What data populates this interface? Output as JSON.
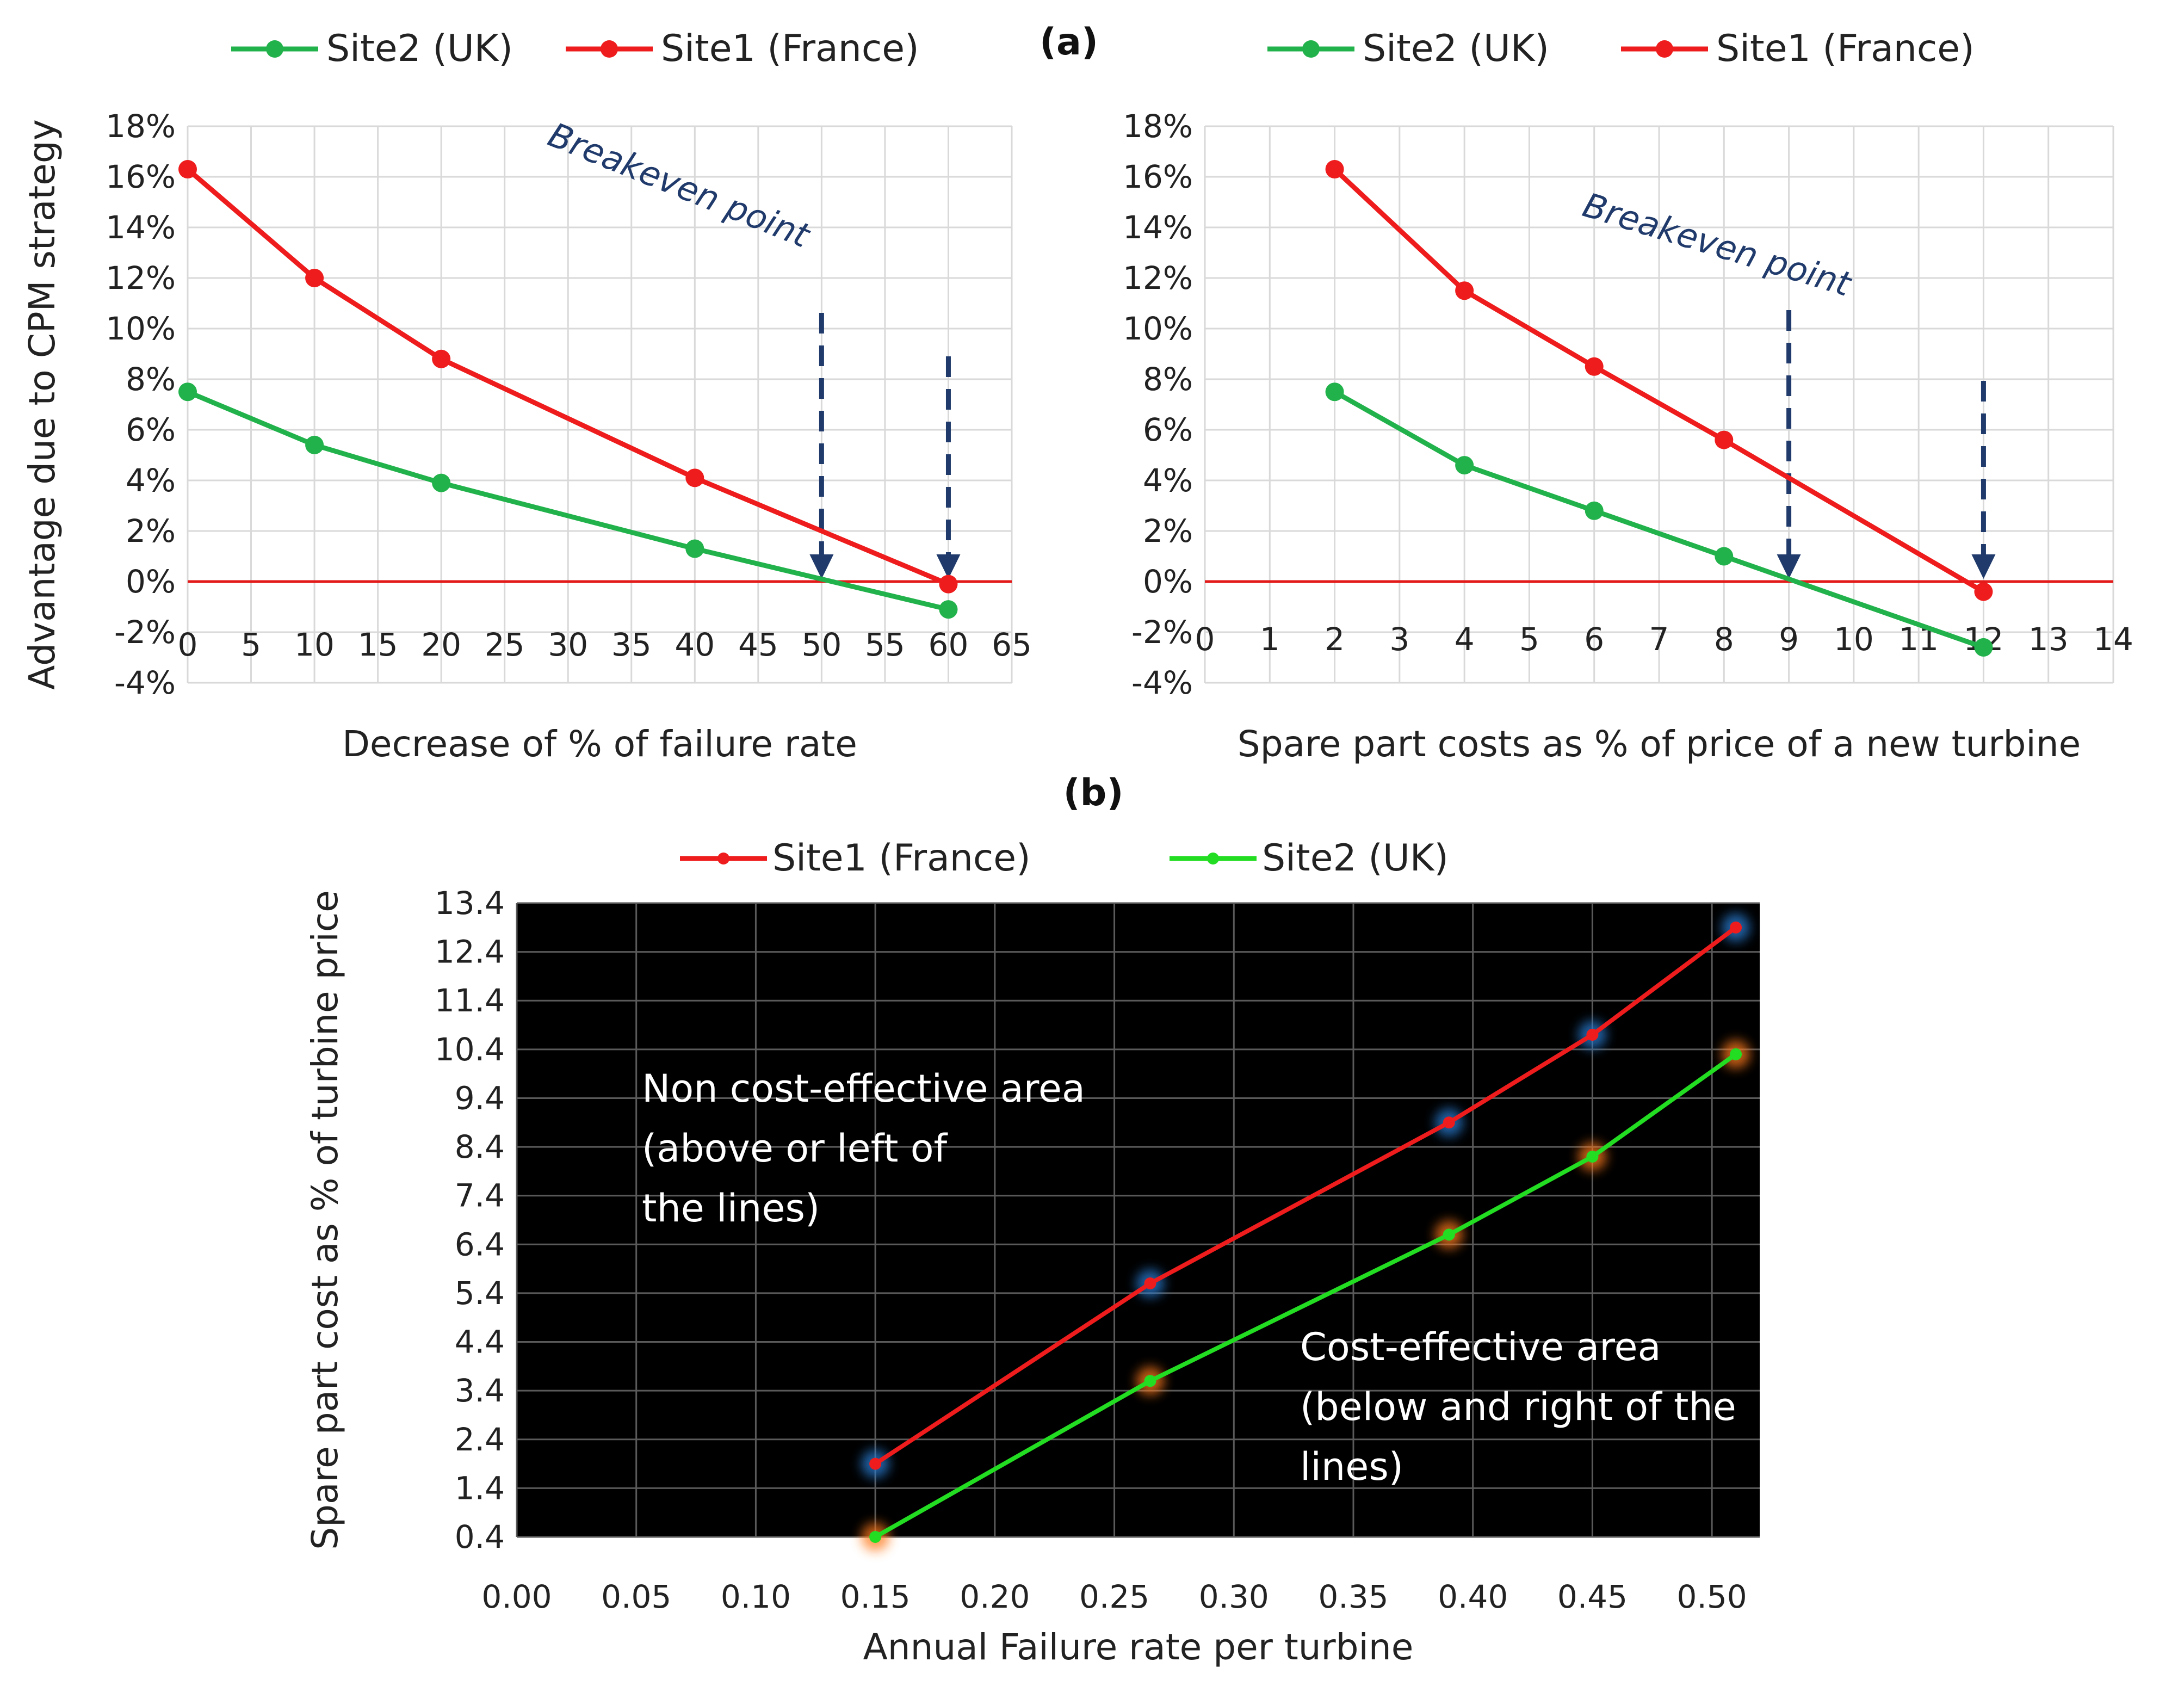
{
  "panel_labels": {
    "a": "(a)",
    "b": "(b)"
  },
  "colors": {
    "france": "#ee1c1c",
    "uk_a": "#22b24c",
    "uk_b": "#22dd22",
    "zero_line": "#e31a1a",
    "arrow": "#1f3a6b",
    "grid_light": "#d9d9d9",
    "grid_dark": "#5a5a5a",
    "plot_bg_b": "#000000"
  },
  "chart_data": [
    {
      "id": "a_left",
      "type": "line",
      "xlabel": "Decrease of % of failure rate",
      "ylabel": "Advantage due to CPM strategy",
      "xlim": [
        0,
        65
      ],
      "ylim": [
        -4,
        18
      ],
      "xticks": [
        0,
        5,
        10,
        15,
        20,
        25,
        30,
        35,
        40,
        45,
        50,
        55,
        60,
        65
      ],
      "xtick_labels": [
        "0",
        "5",
        "10",
        "15",
        "20",
        "25",
        "30",
        "35",
        "40",
        "45",
        "50",
        "55",
        "60",
        "65"
      ],
      "yticks": [
        -4,
        -2,
        0,
        2,
        4,
        6,
        8,
        10,
        12,
        14,
        16,
        18
      ],
      "ytick_labels": [
        "-4%",
        "-2%",
        "0%",
        "2%",
        "4%",
        "6%",
        "8%",
        "10%",
        "12%",
        "14%",
        "16%",
        "18%"
      ],
      "legend": [
        "Site2 (UK)",
        "Site1 (France)"
      ],
      "series": [
        {
          "name": "Site2 (UK)",
          "color_key": "uk_a",
          "x": [
            0,
            10,
            20,
            40,
            60
          ],
          "values": [
            7.5,
            5.4,
            3.9,
            1.3,
            -1.1
          ]
        },
        {
          "name": "Site1 (France)",
          "color_key": "france",
          "x": [
            0,
            10,
            20,
            40,
            60
          ],
          "values": [
            16.3,
            12.0,
            8.8,
            4.1,
            -0.1
          ]
        }
      ],
      "annotation": {
        "text": "Breakeven point",
        "arrows_at_x": [
          50,
          60
        ]
      }
    },
    {
      "id": "a_right",
      "type": "line",
      "xlabel": "Spare part costs as % of price of a new turbine",
      "ylabel": "",
      "xlim": [
        0,
        14
      ],
      "ylim": [
        -4,
        18
      ],
      "xticks": [
        0,
        1,
        2,
        3,
        4,
        5,
        6,
        7,
        8,
        9,
        10,
        11,
        12,
        13,
        14
      ],
      "xtick_labels": [
        "0",
        "1",
        "2",
        "3",
        "4",
        "5",
        "6",
        "7",
        "8",
        "9",
        "10",
        "11",
        "12",
        "13",
        "14"
      ],
      "yticks": [
        -4,
        -2,
        0,
        2,
        4,
        6,
        8,
        10,
        12,
        14,
        16,
        18
      ],
      "ytick_labels": [
        "-4%",
        "-2%",
        "0%",
        "2%",
        "4%",
        "6%",
        "8%",
        "10%",
        "12%",
        "14%",
        "16%",
        "18%"
      ],
      "legend": [
        "Site2 (UK)",
        "Site1 (France)"
      ],
      "series": [
        {
          "name": "Site2 (UK)",
          "color_key": "uk_a",
          "x": [
            2,
            4,
            6,
            8,
            12
          ],
          "values": [
            7.5,
            4.6,
            2.8,
            1.0,
            -2.6
          ]
        },
        {
          "name": "Site1 (France)",
          "color_key": "france",
          "x": [
            2,
            4,
            6,
            8,
            12
          ],
          "values": [
            16.3,
            11.5,
            8.5,
            5.6,
            -0.4
          ]
        }
      ],
      "annotation": {
        "text": "Breakeven point",
        "arrows_at_x": [
          9,
          12
        ]
      }
    },
    {
      "id": "b",
      "type": "line",
      "xlabel": "Annual Failure rate per turbine",
      "ylabel": "Spare part cost as % of turbine price",
      "xlim": [
        0,
        0.52
      ],
      "ylim": [
        0.4,
        13.4
      ],
      "xticks": [
        0,
        0.05,
        0.1,
        0.15,
        0.2,
        0.25,
        0.3,
        0.35,
        0.4,
        0.45,
        0.5
      ],
      "xtick_labels": [
        "0.00",
        "0.05",
        "0.10",
        "0.15",
        "0.20",
        "0.25",
        "0.30",
        "0.35",
        "0.40",
        "0.45",
        "0.50"
      ],
      "yticks": [
        0.4,
        1.4,
        2.4,
        3.4,
        4.4,
        5.4,
        6.4,
        7.4,
        8.4,
        9.4,
        10.4,
        11.4,
        12.4,
        13.4
      ],
      "ytick_labels": [
        "0.4",
        "1.4",
        "2.4",
        "3.4",
        "4.4",
        "5.4",
        "6.4",
        "7.4",
        "8.4",
        "9.4",
        "10.4",
        "11.4",
        "12.4",
        "13.4"
      ],
      "legend": [
        "Site1 (France)",
        "Site2 (UK)"
      ],
      "series": [
        {
          "name": "Site1 (France)",
          "color_key": "france",
          "x": [
            0.15,
            0.265,
            0.39,
            0.45,
            0.51
          ],
          "values": [
            1.9,
            5.6,
            8.9,
            10.7,
            12.9
          ]
        },
        {
          "name": "Site2 (UK)",
          "color_key": "uk_b",
          "x": [
            0.15,
            0.265,
            0.39,
            0.45,
            0.51
          ],
          "values": [
            0.4,
            3.6,
            6.6,
            8.2,
            10.3
          ]
        }
      ],
      "annotations": [
        {
          "lines": [
            "Non cost-effective area",
            "(above or left of",
            " the lines)"
          ]
        },
        {
          "lines": [
            "Cost-effective  area",
            "(below and right of the",
            "lines)"
          ]
        }
      ]
    }
  ]
}
